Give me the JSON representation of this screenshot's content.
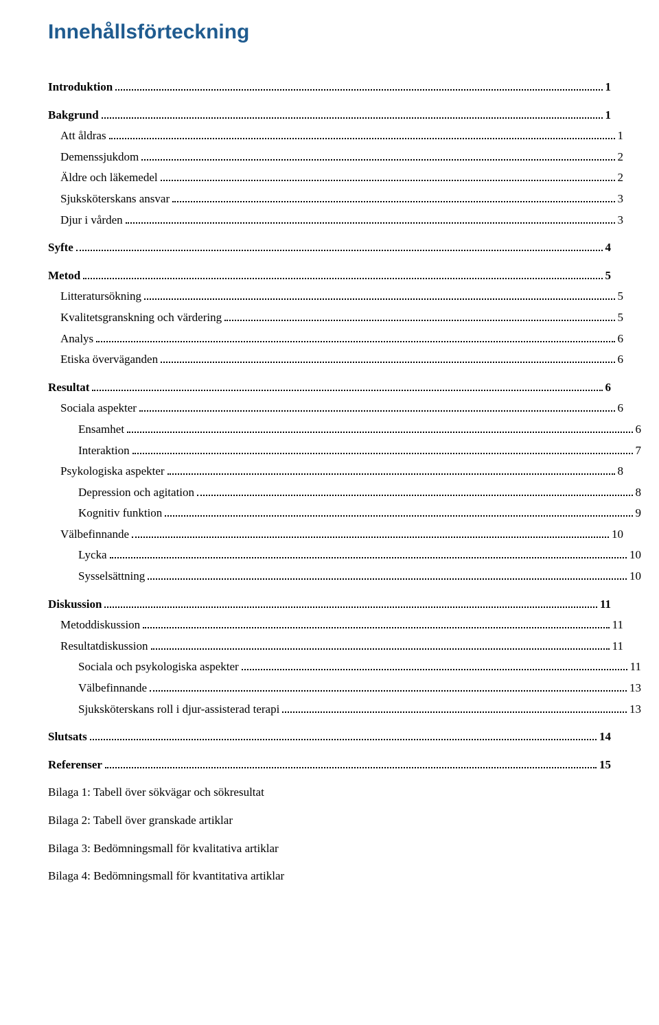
{
  "title": "Innehållsförteckning",
  "title_color": "#1f5b8f",
  "text_color": "#000000",
  "background_color": "#ffffff",
  "font_body": "Times New Roman",
  "font_title": "Arial",
  "title_fontsize": 30,
  "body_fontsize": 17,
  "toc": [
    {
      "label": "Introduktion",
      "page": "1",
      "level": 0
    },
    {
      "label": "Bakgrund",
      "page": "1",
      "level": 0
    },
    {
      "label": "Att åldras",
      "page": "1",
      "level": 1
    },
    {
      "label": "Demenssjukdom",
      "page": "2",
      "level": 1
    },
    {
      "label": "Äldre och läkemedel",
      "page": "2",
      "level": 1
    },
    {
      "label": "Sjuksköterskans ansvar",
      "page": "3",
      "level": 1
    },
    {
      "label": "Djur i vården",
      "page": "3",
      "level": 1
    },
    {
      "label": "Syfte",
      "page": "4",
      "level": 0
    },
    {
      "label": "Metod",
      "page": "5",
      "level": 0
    },
    {
      "label": "Litteratursökning",
      "page": "5",
      "level": 1
    },
    {
      "label": "Kvalitetsgranskning och värdering",
      "page": "5",
      "level": 1
    },
    {
      "label": "Analys",
      "page": "6",
      "level": 1
    },
    {
      "label": "Etiska överväganden",
      "page": "6",
      "level": 1
    },
    {
      "label": "Resultat",
      "page": "6",
      "level": 0
    },
    {
      "label": "Sociala aspekter",
      "page": "6",
      "level": 1
    },
    {
      "label": "Ensamhet",
      "page": "6",
      "level": 2
    },
    {
      "label": "Interaktion",
      "page": "7",
      "level": 2
    },
    {
      "label": "Psykologiska aspekter",
      "page": "8",
      "level": 1
    },
    {
      "label": "Depression och agitation",
      "page": "8",
      "level": 2
    },
    {
      "label": "Kognitiv funktion",
      "page": "9",
      "level": 2
    },
    {
      "label": "Välbefinnande",
      "page": "10",
      "level": 1
    },
    {
      "label": "Lycka",
      "page": "10",
      "level": 2
    },
    {
      "label": "Sysselsättning",
      "page": "10",
      "level": 2
    },
    {
      "label": "Diskussion",
      "page": "11",
      "level": 0
    },
    {
      "label": "Metoddiskussion",
      "page": "11",
      "level": 1
    },
    {
      "label": "Resultatdiskussion",
      "page": "11",
      "level": 1
    },
    {
      "label": "Sociala och psykologiska aspekter",
      "page": "11",
      "level": 2
    },
    {
      "label": "Välbefinnande",
      "page": "13",
      "level": 2
    },
    {
      "label": "Sjuksköterskans roll i djur-assisterad terapi",
      "page": "13",
      "level": 2
    },
    {
      "label": "Slutsats",
      "page": "14",
      "level": 0
    },
    {
      "label": "Referenser",
      "page": "15",
      "level": 0
    },
    {
      "label": "Bilaga 1: Tabell över sökvägar och sökresultat",
      "page": null,
      "level": 0
    },
    {
      "label": "Bilaga 2: Tabell över granskade artiklar",
      "page": null,
      "level": 0
    },
    {
      "label": "Bilaga 3: Bedömningsmall för kvalitativa artiklar",
      "page": null,
      "level": 0
    },
    {
      "label": "Bilaga 4: Bedömningsmall för kvantitativa artiklar",
      "page": null,
      "level": 0
    }
  ]
}
